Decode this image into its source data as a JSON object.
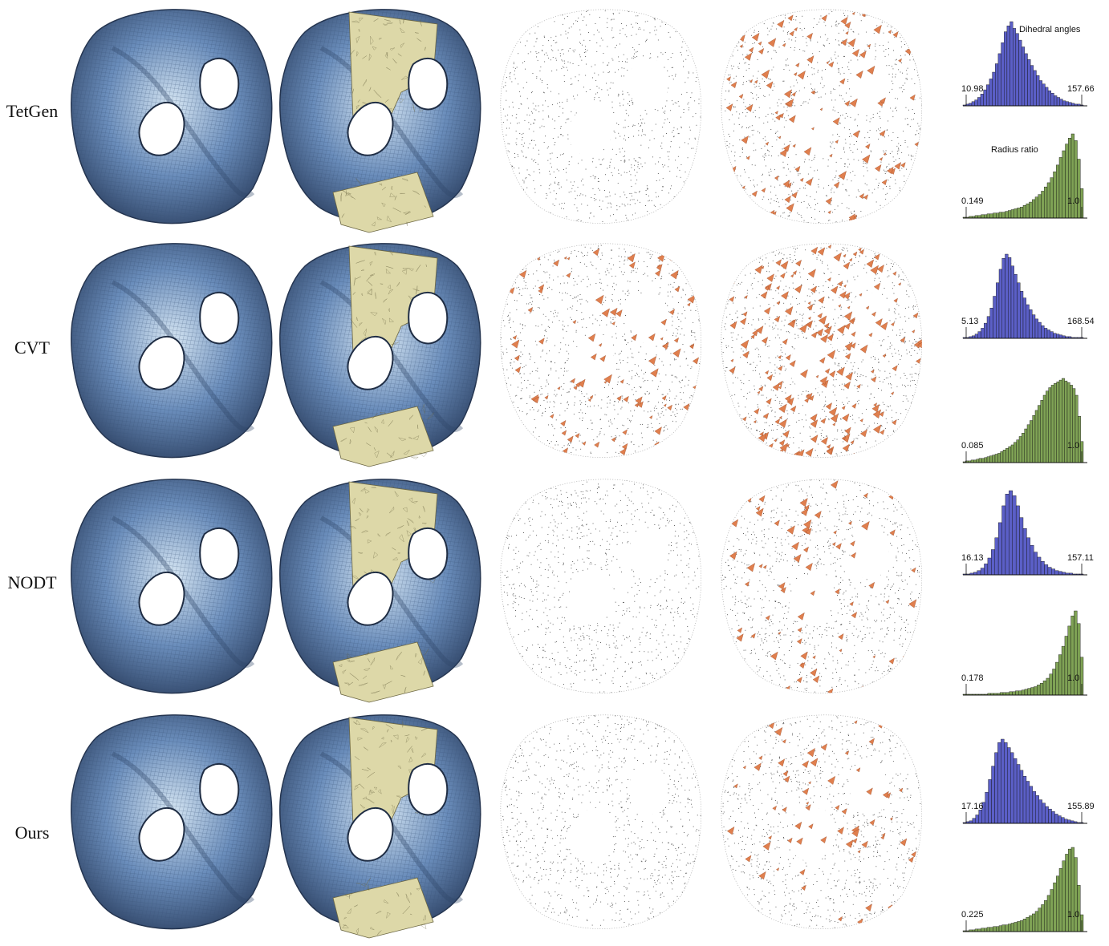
{
  "colors": {
    "surface": "#6a8dbb",
    "surface_light": "#d6e6f3",
    "interior": "#ddd8a8",
    "sliver": "#e07f4e",
    "hist_angles": "#5b5fc7",
    "hist_ratio": "#7fa255"
  },
  "hist_titles": {
    "angles": "Dihedral angles",
    "ratio": "Radius ratio"
  },
  "rows": [
    {
      "label": "TetGen",
      "angle_min": "10.98",
      "angle_max": "157.66",
      "ratio_min": "0.149",
      "ratio_max": "1.0",
      "sliver_density": 0.0,
      "sliver_density_full": 0.55
    },
    {
      "label": "CVT",
      "angle_min": "5.13",
      "angle_max": "168.54",
      "ratio_min": "0.085",
      "ratio_max": "1.0",
      "sliver_density": 0.45,
      "sliver_density_full": 1.0
    },
    {
      "label": "NODT",
      "angle_min": "16.13",
      "angle_max": "157.11",
      "ratio_min": "0.178",
      "ratio_max": "1.0",
      "sliver_density": 0.0,
      "sliver_density_full": 0.35
    },
    {
      "label": "Ours",
      "angle_min": "17.16",
      "angle_max": "155.89",
      "ratio_min": "0.225",
      "ratio_max": "1.0",
      "sliver_density": 0.0,
      "sliver_density_full": 0.3
    }
  ],
  "chart_data": [
    {
      "type": "bar",
      "group": "TetGen",
      "title": "Dihedral angles",
      "xlim": [
        "10.98",
        "157.66"
      ],
      "values": [
        1,
        2,
        3,
        5,
        7,
        10,
        14,
        19,
        25,
        32,
        40,
        50,
        62,
        75,
        88,
        95,
        100,
        92,
        86,
        78,
        70,
        62,
        55,
        48,
        42,
        36,
        30,
        26,
        22,
        18,
        15,
        12,
        10,
        8,
        6,
        5,
        4,
        3,
        2,
        2,
        1
      ]
    },
    {
      "type": "bar",
      "group": "TetGen",
      "title": "Radius ratio",
      "xlim": [
        "0.149",
        "1.0"
      ],
      "values": [
        1,
        1,
        2,
        2,
        3,
        3,
        4,
        4,
        5,
        5,
        6,
        6,
        7,
        7,
        8,
        9,
        10,
        11,
        12,
        13,
        15,
        17,
        19,
        22,
        25,
        28,
        32,
        37,
        42,
        48,
        55,
        63,
        72,
        80,
        88,
        95,
        100,
        92,
        70,
        35
      ]
    },
    {
      "type": "bar",
      "group": "CVT",
      "title": "Dihedral angles",
      "xlim": [
        "5.13",
        "168.54"
      ],
      "values": [
        1,
        1,
        2,
        3,
        5,
        8,
        12,
        18,
        26,
        36,
        50,
        66,
        82,
        95,
        100,
        96,
        86,
        76,
        66,
        56,
        48,
        40,
        34,
        28,
        23,
        19,
        15,
        12,
        10,
        8,
        6,
        5,
        4,
        3,
        2,
        2,
        1,
        1,
        1,
        1
      ]
    },
    {
      "type": "bar",
      "group": "CVT",
      "title": "Radius ratio",
      "xlim": [
        "0.085",
        "1.0"
      ],
      "values": [
        1,
        2,
        2,
        3,
        3,
        4,
        5,
        5,
        6,
        7,
        8,
        9,
        10,
        11,
        13,
        15,
        17,
        19,
        21,
        24,
        27,
        31,
        35,
        40,
        45,
        50,
        56,
        62,
        68,
        74,
        80,
        85,
        89,
        92,
        94,
        96,
        98,
        100,
        97,
        95,
        92,
        88,
        80,
        55,
        25
      ]
    },
    {
      "type": "bar",
      "group": "NODT",
      "title": "Dihedral angles",
      "xlim": [
        "16.13",
        "157.11"
      ],
      "values": [
        1,
        1,
        2,
        3,
        5,
        8,
        13,
        20,
        30,
        44,
        62,
        82,
        96,
        100,
        94,
        82,
        68,
        55,
        44,
        35,
        27,
        21,
        16,
        12,
        9,
        7,
        5,
        4,
        3,
        2,
        2,
        1,
        1,
        1
      ]
    },
    {
      "type": "bar",
      "group": "NODT",
      "title": "Radius ratio",
      "xlim": [
        "0.178",
        "1.0"
      ],
      "values": [
        1,
        1,
        1,
        1,
        1,
        1,
        1,
        1,
        2,
        2,
        2,
        2,
        3,
        3,
        3,
        4,
        4,
        5,
        5,
        6,
        7,
        8,
        9,
        10,
        12,
        14,
        17,
        20,
        25,
        31,
        39,
        48,
        58,
        70,
        82,
        94,
        100,
        85,
        45
      ]
    },
    {
      "type": "bar",
      "group": "Ours",
      "title": "Dihedral angles",
      "xlim": [
        "17.16",
        "155.89"
      ],
      "values": [
        1,
        2,
        3,
        6,
        10,
        16,
        25,
        37,
        52,
        68,
        84,
        96,
        100,
        96,
        90,
        84,
        77,
        70,
        63,
        56,
        50,
        44,
        38,
        33,
        28,
        24,
        20,
        17,
        14,
        11,
        9,
        7,
        5,
        4,
        3,
        2,
        1,
        1
      ]
    },
    {
      "type": "bar",
      "group": "Ours",
      "title": "Radius ratio",
      "xlim": [
        "0.225",
        "1.0"
      ],
      "values": [
        1,
        1,
        2,
        2,
        3,
        3,
        4,
        4,
        5,
        5,
        6,
        6,
        7,
        8,
        8,
        9,
        10,
        11,
        12,
        13,
        15,
        17,
        19,
        21,
        24,
        28,
        32,
        37,
        43,
        50,
        58,
        66,
        75,
        84,
        92,
        98,
        100,
        88,
        55,
        20
      ]
    }
  ]
}
